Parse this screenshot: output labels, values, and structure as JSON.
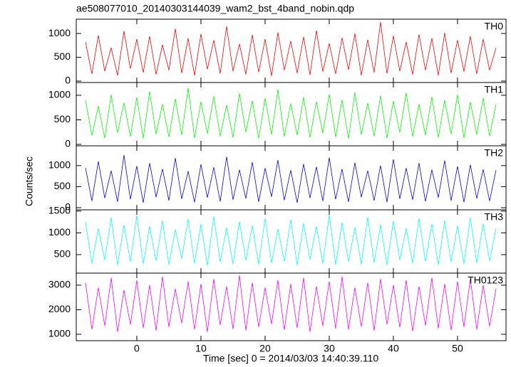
{
  "title": "ae508077010_20140303144039_wam2_bst_4band_nobin.qdp",
  "y_label": "Counts/sec",
  "x_label": "Time [sec] 0 = 2014/03/03 14:40:39.110",
  "chart_data": [
    {
      "type": "line",
      "label": "TH0",
      "color": "#ff0000",
      "x": [
        -8,
        -7,
        -6,
        -5,
        -4,
        -3,
        -2,
        -1,
        0,
        1,
        2,
        3,
        4,
        5,
        6,
        7,
        8,
        9,
        10,
        11,
        12,
        13,
        14,
        15,
        16,
        17,
        18,
        19,
        20,
        21,
        22,
        23,
        24,
        25,
        26,
        27,
        28,
        29,
        30,
        31,
        32,
        33,
        34,
        35,
        36,
        37,
        38,
        39,
        40,
        41,
        42,
        43,
        44,
        45,
        46,
        47,
        48,
        49,
        50,
        51,
        52,
        53,
        54,
        55,
        56
      ],
      "values": [
        820,
        150,
        960,
        210,
        700,
        120,
        1050,
        260,
        880,
        180,
        940,
        140,
        760,
        230,
        1100,
        170,
        900,
        120,
        990,
        250,
        860,
        160,
        1150,
        210,
        780,
        140,
        970,
        190,
        880,
        110,
        1020,
        230,
        840,
        170,
        930,
        130,
        1060,
        200,
        790,
        150,
        910,
        240,
        1000,
        120,
        870,
        180,
        1240,
        160,
        950,
        210,
        820,
        140,
        980,
        230,
        900,
        120,
        1010,
        170,
        860,
        200,
        940,
        150,
        880,
        230,
        700
      ],
      "xlim": [
        -9.44,
        57.56
      ],
      "xticks": [
        0,
        10,
        20,
        30,
        40,
        50
      ],
      "ylim": [
        -30,
        1300
      ],
      "yticks": [
        0,
        500,
        1000
      ]
    },
    {
      "type": "line",
      "label": "TH1",
      "color": "#00ff00",
      "x": [
        -8,
        -7,
        -6,
        -5,
        -4,
        -3,
        -2,
        -1,
        0,
        1,
        2,
        3,
        4,
        5,
        6,
        7,
        8,
        9,
        10,
        11,
        12,
        13,
        14,
        15,
        16,
        17,
        18,
        19,
        20,
        21,
        22,
        23,
        24,
        25,
        26,
        27,
        28,
        29,
        30,
        31,
        32,
        33,
        34,
        35,
        36,
        37,
        38,
        39,
        40,
        41,
        42,
        43,
        44,
        45,
        46,
        47,
        48,
        49,
        50,
        51,
        52,
        53,
        54,
        55,
        56
      ],
      "values": [
        900,
        180,
        780,
        130,
        1010,
        240,
        850,
        160,
        960,
        120,
        1080,
        210,
        820,
        150,
        930,
        190,
        1150,
        130,
        870,
        220,
        980,
        170,
        800,
        140,
        1040,
        250,
        890,
        120,
        940,
        200,
        1120,
        160,
        830,
        190,
        960,
        140,
        870,
        230,
        1020,
        150,
        910,
        120,
        1060,
        200,
        840,
        170,
        990,
        130,
        880,
        240,
        1050,
        160,
        820,
        190,
        970,
        140,
        900,
        210,
        1010,
        130,
        860,
        200,
        940,
        170,
        820
      ],
      "xlim": [
        -9.44,
        57.56
      ],
      "xticks": [
        0,
        10,
        20,
        30,
        40,
        50
      ],
      "ylim": [
        -29,
        1260
      ],
      "yticks": [
        0,
        500,
        1000
      ]
    },
    {
      "type": "line",
      "label": "TH2",
      "color": "#0000ff",
      "x": [
        -8,
        -7,
        -6,
        -5,
        -4,
        -3,
        -2,
        -1,
        0,
        1,
        2,
        3,
        4,
        5,
        6,
        7,
        8,
        9,
        10,
        11,
        12,
        13,
        14,
        15,
        16,
        17,
        18,
        19,
        20,
        21,
        22,
        23,
        24,
        25,
        26,
        27,
        28,
        29,
        30,
        31,
        32,
        33,
        34,
        35,
        36,
        37,
        38,
        39,
        40,
        41,
        42,
        43,
        44,
        45,
        46,
        47,
        48,
        49,
        50,
        51,
        52,
        53,
        54,
        55,
        56
      ],
      "values": [
        950,
        160,
        1100,
        230,
        880,
        140,
        1250,
        200,
        990,
        120,
        1060,
        250,
        920,
        170,
        1180,
        210,
        870,
        130,
        1030,
        240,
        960,
        150,
        1210,
        190,
        900,
        220,
        1080,
        140,
        940,
        260,
        1130,
        180,
        890,
        120,
        1040,
        230,
        970,
        160,
        1190,
        200,
        920,
        140,
        1070,
        250,
        880,
        170,
        1000,
        130,
        1150,
        210,
        940,
        190,
        1060,
        150,
        900,
        240,
        1120,
        170,
        980,
        130,
        1020,
        220,
        910,
        160,
        890
      ],
      "xlim": [
        -9.44,
        57.56
      ],
      "xticks": [
        0,
        10,
        20,
        30,
        40,
        50
      ],
      "ylim": [
        -50,
        1470
      ],
      "yticks": [
        0,
        500,
        1000
      ]
    },
    {
      "type": "line",
      "label": "TH3",
      "color": "#00ffff",
      "x": [
        -8,
        -7,
        -6,
        -5,
        -4,
        -3,
        -2,
        -1,
        0,
        1,
        2,
        3,
        4,
        5,
        6,
        7,
        8,
        9,
        10,
        11,
        12,
        13,
        14,
        15,
        16,
        17,
        18,
        19,
        20,
        21,
        22,
        23,
        24,
        25,
        26,
        27,
        28,
        29,
        30,
        31,
        32,
        33,
        34,
        35,
        36,
        37,
        38,
        39,
        40,
        41,
        42,
        43,
        44,
        45,
        46,
        47,
        48,
        49,
        50,
        51,
        52,
        53,
        54,
        55,
        56
      ],
      "values": [
        1250,
        300,
        1100,
        380,
        1350,
        260,
        1180,
        340,
        1400,
        290,
        1150,
        360,
        1280,
        270,
        1080,
        410,
        1320,
        300,
        1200,
        250,
        1380,
        330,
        1120,
        290,
        1260,
        370,
        1170,
        280,
        1340,
        310,
        1090,
        350,
        1300,
        260,
        1220,
        390,
        1150,
        300,
        1410,
        270,
        1240,
        340,
        1130,
        280,
        1360,
        320,
        1190,
        260,
        1270,
        380,
        1110,
        300,
        1330,
        350,
        1200,
        270,
        1290,
        330,
        1160,
        290,
        1350,
        310,
        1210,
        360,
        1100
      ],
      "xlim": [
        -9.44,
        57.56
      ],
      "xticks": [
        0,
        10,
        20,
        30,
        40,
        50
      ],
      "ylim": [
        75,
        1530
      ],
      "yticks": [
        500,
        1000,
        1500
      ]
    },
    {
      "type": "line",
      "label": "TH0123",
      "color": "#ff00ff",
      "x": [
        -8,
        -7,
        -6,
        -5,
        -4,
        -3,
        -2,
        -1,
        0,
        1,
        2,
        3,
        4,
        5,
        6,
        7,
        8,
        9,
        10,
        11,
        12,
        13,
        14,
        15,
        16,
        17,
        18,
        19,
        20,
        21,
        22,
        23,
        24,
        25,
        26,
        27,
        28,
        29,
        30,
        31,
        32,
        33,
        34,
        35,
        36,
        37,
        38,
        39,
        40,
        41,
        42,
        43,
        44,
        45,
        46,
        47,
        48,
        49,
        50,
        51,
        52,
        53,
        54,
        55,
        56
      ],
      "values": [
        3100,
        1200,
        2900,
        1350,
        3300,
        1100,
        2800,
        1400,
        3200,
        1250,
        3000,
        1150,
        3350,
        1300,
        2850,
        1450,
        3150,
        1200,
        3050,
        1100,
        3250,
        1380,
        2950,
        1220,
        3400,
        1160,
        3100,
        1300,
        2900,
        1420,
        3200,
        1180,
        3050,
        1260,
        3300,
        1100,
        2950,
        1350,
        3150,
        1230,
        3350,
        1200,
        2900,
        1320,
        3100,
        1150,
        3250,
        1400,
        3000,
        1280,
        3200,
        1120,
        2950,
        1360,
        3300,
        1240,
        3050,
        1170,
        3150,
        1300,
        3250,
        1200,
        3000,
        1330,
        2850
      ],
      "xlim": [
        -9.44,
        57.56
      ],
      "xticks": [
        0,
        10,
        20,
        30,
        40,
        50
      ],
      "ylim": [
        740,
        3490
      ],
      "yticks": [
        1000,
        2000,
        3000
      ]
    }
  ]
}
